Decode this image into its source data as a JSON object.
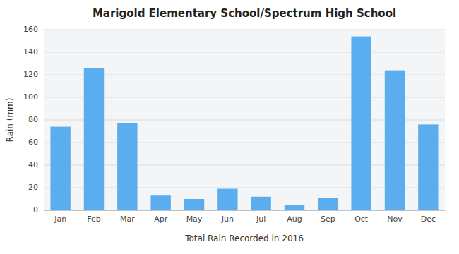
{
  "chart_data": {
    "type": "bar",
    "title": "Marigold Elementary School/Spectrum High School",
    "xlabel": "Total Rain Recorded in 2016",
    "ylabel": "Rain (mm)",
    "categories": [
      "Jan",
      "Feb",
      "Mar",
      "Apr",
      "May",
      "Jun",
      "Jul",
      "Aug",
      "Sep",
      "Oct",
      "Nov",
      "Dec"
    ],
    "values": [
      74,
      126,
      77,
      13,
      10,
      19,
      12,
      5,
      11,
      154,
      124,
      76
    ],
    "color": "#5aaef0",
    "ylim": [
      0,
      160
    ],
    "yticks": [
      0,
      20,
      40,
      60,
      80,
      100,
      120,
      140,
      160
    ],
    "grid": true
  }
}
